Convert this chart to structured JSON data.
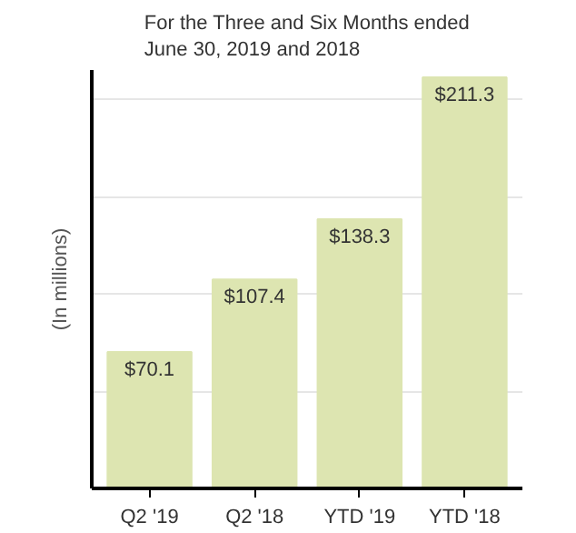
{
  "chart_data": {
    "type": "bar",
    "title": "For the Three and Six Months ended\nJune 30, 2019 and 2018",
    "ylabel": "(In millions)",
    "categories": [
      "Q2 '19",
      "Q2 '18",
      "YTD '19",
      "YTD '18"
    ],
    "values": [
      70.1,
      107.4,
      138.3,
      211.3
    ],
    "color": "#dde5b1",
    "value_labels": [
      "$70.1",
      "$107.4",
      "$138.3",
      "$211.3"
    ],
    "ylim": [
      0,
      215
    ],
    "yticks": [
      {
        "value": 50,
        "label": null
      },
      {
        "value": 100,
        "label": null
      },
      {
        "value": 150,
        "label": null
      },
      {
        "value": 200,
        "label": null
      }
    ],
    "tick_labels": "x",
    "grid": "y"
  }
}
